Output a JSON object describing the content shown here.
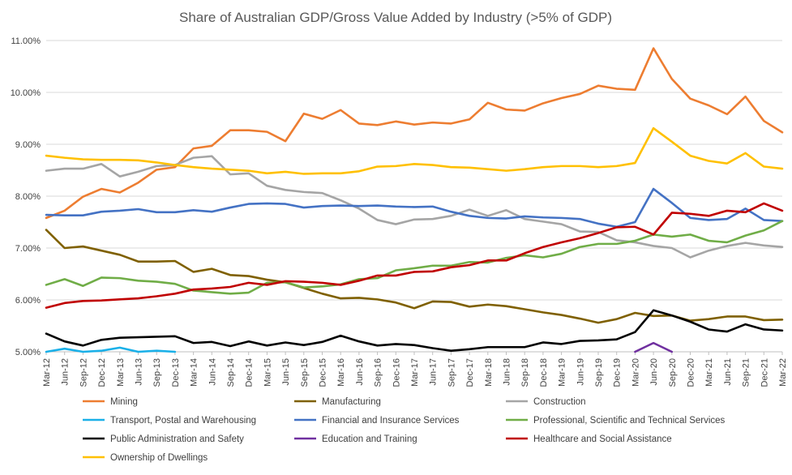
{
  "chart_data": {
    "type": "line",
    "title": "Share of Australian GDP/Gross Value Added by Industry (>5% of GDP)",
    "ylim": [
      0.05,
      0.11
    ],
    "yticks": [
      {
        "value": 0.05,
        "label": "5.00%"
      },
      {
        "value": 0.06,
        "label": "6.00%"
      },
      {
        "value": 0.07,
        "label": "7.00%"
      },
      {
        "value": 0.08,
        "label": "8.00%"
      },
      {
        "value": 0.09,
        "label": "9.00%"
      },
      {
        "value": 0.1,
        "label": "10.00%"
      },
      {
        "value": 0.11,
        "label": "11.00%"
      }
    ],
    "grid": true,
    "legend_position": "bottom",
    "x": [
      "Mar-12",
      "Jun-12",
      "Sep-12",
      "Dec-12",
      "Mar-13",
      "Jun-13",
      "Sep-13",
      "Dec-13",
      "Mar-14",
      "Jun-14",
      "Sep-14",
      "Dec-14",
      "Mar-15",
      "Jun-15",
      "Sep-15",
      "Dec-15",
      "Mar-16",
      "Jun-16",
      "Sep-16",
      "Dec-16",
      "Mar-17",
      "Jun-17",
      "Sep-17",
      "Dec-17",
      "Mar-18",
      "Jun-18",
      "Sep-18",
      "Dec-18",
      "Mar-19",
      "Jun-19",
      "Sep-19",
      "Dec-19",
      "Mar-20",
      "Jun-20",
      "Sep-20",
      "Dec-20",
      "Mar-21",
      "Jun-21",
      "Sep-21",
      "Dec-21",
      "Mar-22"
    ],
    "series": [
      {
        "name": "Mining",
        "color": "#ed7d31",
        "values": [
          0.0758,
          0.0772,
          0.0799,
          0.0814,
          0.0807,
          0.0826,
          0.0851,
          0.0856,
          0.0892,
          0.0897,
          0.0927,
          0.0927,
          0.0924,
          0.0906,
          0.0959,
          0.0949,
          0.0966,
          0.094,
          0.0937,
          0.0944,
          0.0938,
          0.0942,
          0.094,
          0.0948,
          0.098,
          0.0967,
          0.0965,
          0.0979,
          0.0989,
          0.0997,
          0.1013,
          0.1007,
          0.1005,
          0.1085,
          0.1026,
          0.0988,
          0.0975,
          0.0958,
          0.0992,
          0.0945,
          0.0923
        ]
      },
      {
        "name": "Manufacturing",
        "color": "#7f6000",
        "values": [
          0.0735,
          0.07,
          0.0703,
          0.0695,
          0.0687,
          0.0674,
          0.0674,
          0.0675,
          0.0654,
          0.066,
          0.0648,
          0.0646,
          0.0639,
          0.0634,
          0.0623,
          0.0612,
          0.0603,
          0.0604,
          0.0601,
          0.0595,
          0.0584,
          0.0597,
          0.0596,
          0.0587,
          0.0591,
          0.0588,
          0.0582,
          0.0576,
          0.0571,
          0.0564,
          0.0556,
          0.0563,
          0.0575,
          0.0569,
          0.057,
          0.056,
          0.0563,
          0.0568,
          0.0568,
          0.0561,
          0.0562
        ]
      },
      {
        "name": "Construction",
        "color": "#a5a5a5",
        "values": [
          0.0849,
          0.0853,
          0.0853,
          0.0862,
          0.0838,
          0.0847,
          0.0858,
          0.086,
          0.0874,
          0.0877,
          0.0842,
          0.0844,
          0.082,
          0.0812,
          0.0808,
          0.0806,
          0.0792,
          0.0776,
          0.0754,
          0.0746,
          0.0755,
          0.0756,
          0.0762,
          0.0774,
          0.0762,
          0.0773,
          0.0756,
          0.0751,
          0.0746,
          0.0732,
          0.0731,
          0.0715,
          0.0711,
          0.0704,
          0.07,
          0.0682,
          0.0695,
          0.0704,
          0.071,
          0.0705,
          0.0702
        ]
      },
      {
        "name": "Transport, Postal and Warehousing",
        "color": "#1ab0e8",
        "values": [
          0.05,
          0.0506,
          0.05,
          0.0502,
          0.0508,
          0.0499,
          0.0502,
          0.0497,
          null,
          null,
          null,
          null,
          null,
          null,
          null,
          null,
          null,
          null,
          null,
          null,
          null,
          null,
          null,
          null,
          null,
          null,
          null,
          null,
          null,
          null,
          null,
          null,
          null,
          null,
          null,
          null,
          null,
          null,
          null,
          null,
          null
        ]
      },
      {
        "name": "Financial and Insurance Services",
        "color": "#4472c4",
        "values": [
          0.0764,
          0.0763,
          0.0763,
          0.077,
          0.0772,
          0.0775,
          0.0769,
          0.0769,
          0.0773,
          0.077,
          0.0778,
          0.0785,
          0.0786,
          0.0785,
          0.0778,
          0.0781,
          0.0782,
          0.0781,
          0.0782,
          0.078,
          0.0779,
          0.078,
          0.077,
          0.0762,
          0.0758,
          0.0757,
          0.0761,
          0.0759,
          0.0758,
          0.0756,
          0.0747,
          0.0741,
          0.075,
          0.0814,
          0.0787,
          0.0758,
          0.0754,
          0.0756,
          0.0776,
          0.0754,
          0.0752
        ]
      },
      {
        "name": "Professional, Scientific and Technical Services",
        "color": "#70ad47",
        "values": [
          0.0629,
          0.064,
          0.0627,
          0.0643,
          0.0642,
          0.0637,
          0.0635,
          0.0631,
          0.0618,
          0.0615,
          0.0612,
          0.0614,
          0.0633,
          0.0634,
          0.0624,
          0.0626,
          0.063,
          0.064,
          0.0642,
          0.0657,
          0.0661,
          0.0666,
          0.0666,
          0.0673,
          0.0672,
          0.0681,
          0.0686,
          0.0682,
          0.0689,
          0.0702,
          0.0708,
          0.0708,
          0.0714,
          0.0726,
          0.0722,
          0.0726,
          0.0714,
          0.0711,
          0.0724,
          0.0734,
          0.0752
        ]
      },
      {
        "name": "Public Administration and Safety",
        "color": "#000000",
        "values": [
          0.0535,
          0.052,
          0.0512,
          0.0523,
          0.0527,
          0.0528,
          0.0529,
          0.053,
          0.0517,
          0.0519,
          0.0511,
          0.052,
          0.0512,
          0.0518,
          0.0513,
          0.0519,
          0.0531,
          0.052,
          0.0512,
          0.0515,
          0.0513,
          0.0507,
          0.0502,
          0.0505,
          0.0509,
          0.0509,
          0.0509,
          0.0518,
          0.0515,
          0.0521,
          0.0522,
          0.0524,
          0.0538,
          0.058,
          0.057,
          0.0558,
          0.0543,
          0.0539,
          0.0553,
          0.0543,
          0.0541
        ]
      },
      {
        "name": "Education and Training",
        "color": "#7030a0",
        "values": [
          null,
          null,
          null,
          null,
          null,
          null,
          null,
          null,
          null,
          null,
          null,
          null,
          null,
          null,
          null,
          null,
          null,
          null,
          null,
          null,
          null,
          null,
          null,
          null,
          null,
          null,
          null,
          null,
          null,
          null,
          null,
          null,
          0.0497,
          0.0517,
          0.05,
          null,
          null,
          null,
          null,
          null,
          null
        ]
      },
      {
        "name": "Healthcare and Social Assistance",
        "color": "#c00000",
        "values": [
          0.0585,
          0.0594,
          0.0598,
          0.0599,
          0.0601,
          0.0603,
          0.0607,
          0.0612,
          0.062,
          0.0622,
          0.0625,
          0.0633,
          0.0629,
          0.0636,
          0.0635,
          0.0633,
          0.0629,
          0.0637,
          0.0647,
          0.0647,
          0.0654,
          0.0655,
          0.0663,
          0.0667,
          0.0676,
          0.0676,
          0.069,
          0.0702,
          0.0711,
          0.0719,
          0.0729,
          0.074,
          0.0741,
          0.0726,
          0.0768,
          0.0766,
          0.0762,
          0.0772,
          0.0769,
          0.0786,
          0.0772
        ]
      },
      {
        "name": "Ownership of Dwellings",
        "color": "#ffc000",
        "values": [
          0.0878,
          0.0874,
          0.0871,
          0.087,
          0.087,
          0.0869,
          0.0865,
          0.086,
          0.0856,
          0.0853,
          0.0851,
          0.0849,
          0.0844,
          0.0847,
          0.0843,
          0.0844,
          0.0844,
          0.0848,
          0.0857,
          0.0858,
          0.0862,
          0.086,
          0.0856,
          0.0855,
          0.0852,
          0.0849,
          0.0852,
          0.0856,
          0.0858,
          0.0858,
          0.0856,
          0.0858,
          0.0864,
          0.0931,
          0.0905,
          0.0878,
          0.0868,
          0.0863,
          0.0883,
          0.0857,
          0.0853
        ]
      }
    ]
  }
}
